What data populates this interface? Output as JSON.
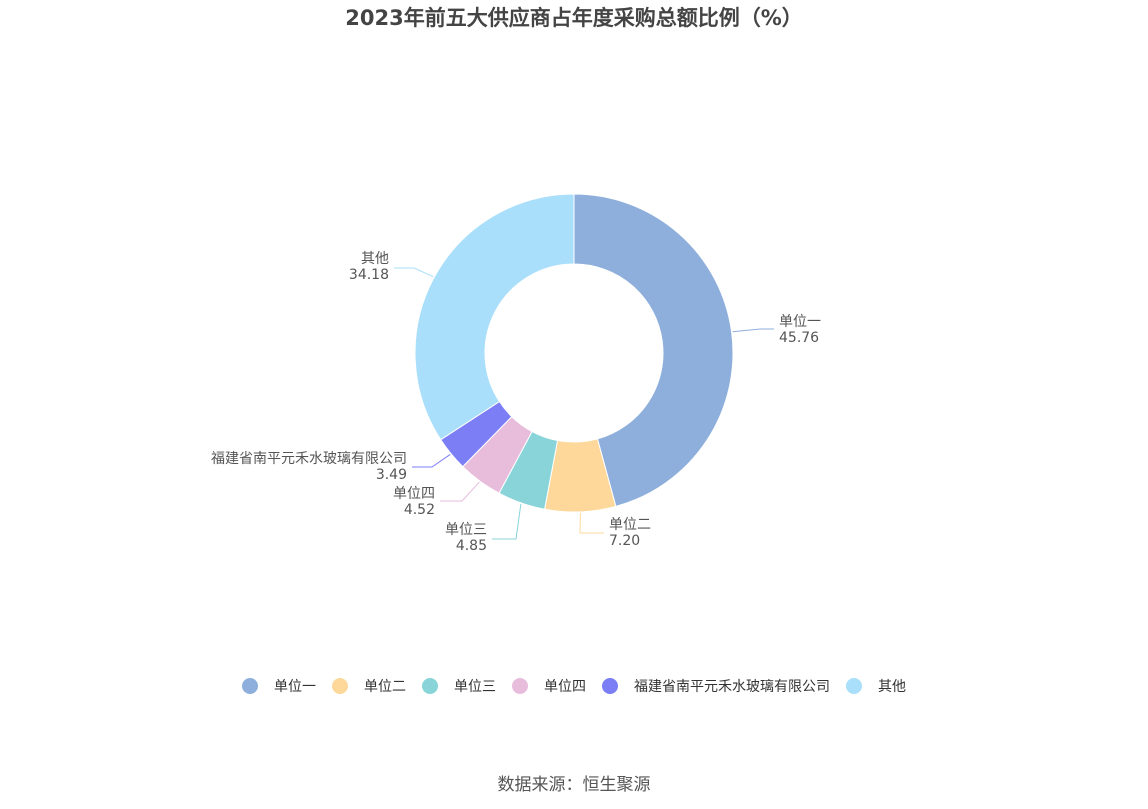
{
  "chart_data": {
    "type": "pie",
    "title": "2023年前五大供应商占年度采购总额比例（%）",
    "donut": true,
    "legend_position": "bottom",
    "categories": [
      "单位一",
      "单位二",
      "单位三",
      "单位四",
      "福建省南平元禾水玻璃有限公司",
      "其他"
    ],
    "values": [
      45.76,
      7.2,
      4.85,
      4.52,
      3.49,
      34.18
    ],
    "value_labels": [
      "45.76",
      "7.20",
      "4.85",
      "4.52",
      "3.49",
      "34.18"
    ],
    "colors": [
      "#8eafdc",
      "#fdd89a",
      "#88d4d9",
      "#e8bddc",
      "#7b7ef5",
      "#a9dffa"
    ]
  },
  "source": "数据来源：恒生聚源"
}
